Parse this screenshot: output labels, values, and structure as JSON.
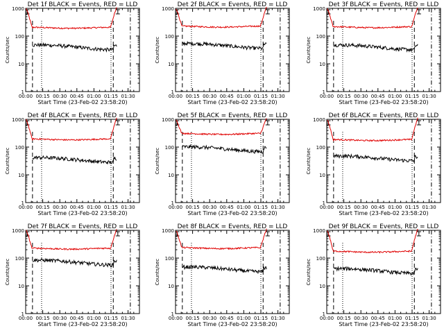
{
  "page": {
    "background": "#ffffff"
  },
  "colors": {
    "events": "#000000",
    "lld": "#e00000",
    "axis": "#000000"
  },
  "shared": {
    "ylabel": "Counts/sec",
    "xlabel": "Start Time (23-Feb-02 23:58:20)",
    "x_ticks": [
      "00:00",
      "00:15",
      "00:30",
      "00:45",
      "01:00",
      "01:15",
      "01:30"
    ],
    "x_tick_minutes": [
      0,
      15,
      30,
      45,
      60,
      75,
      90
    ],
    "y_ticks": [
      "1",
      "10",
      "100",
      "1000"
    ],
    "y_tick_values": [
      1,
      10,
      100,
      1000
    ],
    "xlim_minutes": [
      0,
      100
    ],
    "ylim": [
      1,
      1000
    ],
    "yscale": "log",
    "dashed_lines_minutes": [
      6,
      77
    ],
    "dotted_lines_minutes": [
      14,
      75
    ],
    "dashdot_line_minutes": [
      92
    ],
    "marker_minute": 81
  },
  "chart_data": [
    {
      "type": "line",
      "title": "Det 1f BLACK = Events, RED = LLD",
      "events_level": 40,
      "lld_level": 200
    },
    {
      "type": "line",
      "title": "Det 2f BLACK = Events, RED = LLD",
      "events_level": 45,
      "lld_level": 220
    },
    {
      "type": "line",
      "title": "Det 3f BLACK = Events, RED = LLD",
      "events_level": 40,
      "lld_level": 210
    },
    {
      "type": "line",
      "title": "Det 4f BLACK = Events, RED = LLD",
      "events_level": 35,
      "lld_level": 190
    },
    {
      "type": "line",
      "title": "Det 5f BLACK = Events, RED = LLD",
      "events_level": 85,
      "lld_level": 300
    },
    {
      "type": "line",
      "title": "Det 6f BLACK = Events, RED = LLD",
      "events_level": 40,
      "lld_level": 180
    },
    {
      "type": "line",
      "title": "Det 7f BLACK = Events, RED = LLD",
      "events_level": 70,
      "lld_level": 220
    },
    {
      "type": "line",
      "title": "Det 8f BLACK = Events, RED = LLD",
      "events_level": 40,
      "lld_level": 230
    },
    {
      "type": "line",
      "title": "Det 9f BLACK = Events, RED = LLD",
      "events_level": 35,
      "lld_level": 170
    }
  ]
}
